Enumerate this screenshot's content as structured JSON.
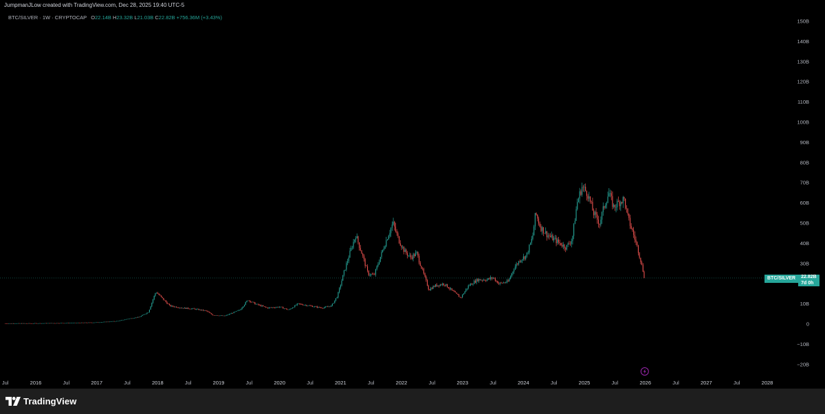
{
  "header": {
    "text": "JumpmanJLow created with TradingView.com, Dec 28, 2025 19:40 UTC-5"
  },
  "legend": {
    "symbol": "BTC/SILVER · 1W · CRYPTOCAP",
    "o_label": "O",
    "o_value": "22.14B",
    "h_label": "H",
    "h_value": "23.32B",
    "l_label": "L",
    "l_value": "21.03B",
    "c_label": "C",
    "c_value": "22.82B",
    "change": "+756.36M (+3.43%)"
  },
  "price_badge": {
    "name": "BTC/SILVER",
    "price": "22.82B",
    "countdown": "7d 0h"
  },
  "footer": {
    "logo_text": "TradingView"
  },
  "colors": {
    "up": "#26a69a",
    "down": "#ef5350",
    "background": "#000000",
    "axis_text": "#b2b5be",
    "footer_bg": "#1e1e1e",
    "lightning": "#9c27b0"
  },
  "chart_data": {
    "type": "candlestick",
    "y_unit": "B",
    "ylim": [
      -25,
      152
    ],
    "y_ticks": [
      {
        "value": 150,
        "label": "150B"
      },
      {
        "value": 140,
        "label": "140B"
      },
      {
        "value": 130,
        "label": "130B"
      },
      {
        "value": 120,
        "label": "120B"
      },
      {
        "value": 110,
        "label": "110B"
      },
      {
        "value": 100,
        "label": "100B"
      },
      {
        "value": 90,
        "label": "90B"
      },
      {
        "value": 80,
        "label": "80B"
      },
      {
        "value": 70,
        "label": "70B"
      },
      {
        "value": 60,
        "label": "60B"
      },
      {
        "value": 50,
        "label": "50B"
      },
      {
        "value": 40,
        "label": "40B"
      },
      {
        "value": 30,
        "label": "30B"
      },
      {
        "value": 20,
        "label": "20B"
      },
      {
        "value": 10,
        "label": "10B"
      },
      {
        "value": 0,
        "label": "0"
      },
      {
        "value": -10,
        "label": "−10B"
      },
      {
        "value": -20,
        "label": "−20B"
      }
    ],
    "xlim": [
      2015.5,
      2028.4
    ],
    "x_ticks": [
      {
        "value": 2015.5,
        "label": "Jul"
      },
      {
        "value": 2016.0,
        "label": "2016"
      },
      {
        "value": 2016.5,
        "label": "Jul"
      },
      {
        "value": 2017.0,
        "label": "2017"
      },
      {
        "value": 2017.5,
        "label": "Jul"
      },
      {
        "value": 2018.0,
        "label": "2018"
      },
      {
        "value": 2018.5,
        "label": "Jul"
      },
      {
        "value": 2019.0,
        "label": "2019"
      },
      {
        "value": 2019.5,
        "label": "Jul"
      },
      {
        "value": 2020.0,
        "label": "2020"
      },
      {
        "value": 2020.5,
        "label": "Jul"
      },
      {
        "value": 2021.0,
        "label": "2021"
      },
      {
        "value": 2021.5,
        "label": "Jul"
      },
      {
        "value": 2022.0,
        "label": "2022"
      },
      {
        "value": 2022.5,
        "label": "Jul"
      },
      {
        "value": 2023.0,
        "label": "2023"
      },
      {
        "value": 2023.5,
        "label": "Jul"
      },
      {
        "value": 2024.0,
        "label": "2024"
      },
      {
        "value": 2024.5,
        "label": "Jul"
      },
      {
        "value": 2025.0,
        "label": "2025"
      },
      {
        "value": 2025.5,
        "label": "Jul"
      },
      {
        "value": 2026.0,
        "label": "2026"
      },
      {
        "value": 2026.5,
        "label": "Jul"
      },
      {
        "value": 2027.0,
        "label": "2027"
      },
      {
        "value": 2027.5,
        "label": "Jul"
      },
      {
        "value": 2028.0,
        "label": "2028"
      }
    ],
    "last_price": 22.82,
    "series_path": [
      {
        "x": 2015.5,
        "y": 0.3
      },
      {
        "x": 2016.0,
        "y": 0.35
      },
      {
        "x": 2016.5,
        "y": 0.5
      },
      {
        "x": 2017.0,
        "y": 0.8
      },
      {
        "x": 2017.35,
        "y": 1.5
      },
      {
        "x": 2017.5,
        "y": 2.5
      },
      {
        "x": 2017.7,
        "y": 3.5
      },
      {
        "x": 2017.85,
        "y": 6
      },
      {
        "x": 2017.92,
        "y": 12
      },
      {
        "x": 2017.97,
        "y": 16
      },
      {
        "x": 2018.1,
        "y": 12
      },
      {
        "x": 2018.2,
        "y": 9
      },
      {
        "x": 2018.4,
        "y": 8
      },
      {
        "x": 2018.6,
        "y": 7.5
      },
      {
        "x": 2018.8,
        "y": 6.5
      },
      {
        "x": 2018.9,
        "y": 4.5
      },
      {
        "x": 2019.1,
        "y": 4
      },
      {
        "x": 2019.35,
        "y": 7
      },
      {
        "x": 2019.48,
        "y": 12
      },
      {
        "x": 2019.6,
        "y": 10
      },
      {
        "x": 2019.8,
        "y": 8
      },
      {
        "x": 2020.0,
        "y": 8.5
      },
      {
        "x": 2020.15,
        "y": 7
      },
      {
        "x": 2020.3,
        "y": 10
      },
      {
        "x": 2020.5,
        "y": 9
      },
      {
        "x": 2020.7,
        "y": 8
      },
      {
        "x": 2020.85,
        "y": 9
      },
      {
        "x": 2020.95,
        "y": 14
      },
      {
        "x": 2021.05,
        "y": 25
      },
      {
        "x": 2021.15,
        "y": 35
      },
      {
        "x": 2021.25,
        "y": 44
      },
      {
        "x": 2021.35,
        "y": 35
      },
      {
        "x": 2021.45,
        "y": 25
      },
      {
        "x": 2021.55,
        "y": 24
      },
      {
        "x": 2021.65,
        "y": 33
      },
      {
        "x": 2021.78,
        "y": 44
      },
      {
        "x": 2021.86,
        "y": 50
      },
      {
        "x": 2021.95,
        "y": 42
      },
      {
        "x": 2022.05,
        "y": 36
      },
      {
        "x": 2022.15,
        "y": 33
      },
      {
        "x": 2022.25,
        "y": 35
      },
      {
        "x": 2022.35,
        "y": 26
      },
      {
        "x": 2022.45,
        "y": 17
      },
      {
        "x": 2022.55,
        "y": 19
      },
      {
        "x": 2022.7,
        "y": 20
      },
      {
        "x": 2022.85,
        "y": 16
      },
      {
        "x": 2022.97,
        "y": 13
      },
      {
        "x": 2023.1,
        "y": 19
      },
      {
        "x": 2023.25,
        "y": 22
      },
      {
        "x": 2023.4,
        "y": 22
      },
      {
        "x": 2023.5,
        "y": 23
      },
      {
        "x": 2023.6,
        "y": 20
      },
      {
        "x": 2023.75,
        "y": 21
      },
      {
        "x": 2023.85,
        "y": 28
      },
      {
        "x": 2023.95,
        "y": 32
      },
      {
        "x": 2024.05,
        "y": 34
      },
      {
        "x": 2024.15,
        "y": 43
      },
      {
        "x": 2024.2,
        "y": 55
      },
      {
        "x": 2024.28,
        "y": 48
      },
      {
        "x": 2024.4,
        "y": 44
      },
      {
        "x": 2024.5,
        "y": 42
      },
      {
        "x": 2024.6,
        "y": 40
      },
      {
        "x": 2024.7,
        "y": 38
      },
      {
        "x": 2024.8,
        "y": 42
      },
      {
        "x": 2024.88,
        "y": 60
      },
      {
        "x": 2024.96,
        "y": 68
      },
      {
        "x": 2025.05,
        "y": 65
      },
      {
        "x": 2025.15,
        "y": 55
      },
      {
        "x": 2025.25,
        "y": 50
      },
      {
        "x": 2025.32,
        "y": 58
      },
      {
        "x": 2025.4,
        "y": 65
      },
      {
        "x": 2025.48,
        "y": 58
      },
      {
        "x": 2025.55,
        "y": 60
      },
      {
        "x": 2025.65,
        "y": 62
      },
      {
        "x": 2025.72,
        "y": 52
      },
      {
        "x": 2025.8,
        "y": 45
      },
      {
        "x": 2025.88,
        "y": 37
      },
      {
        "x": 2025.95,
        "y": 28
      },
      {
        "x": 2025.99,
        "y": 22.82
      }
    ]
  }
}
